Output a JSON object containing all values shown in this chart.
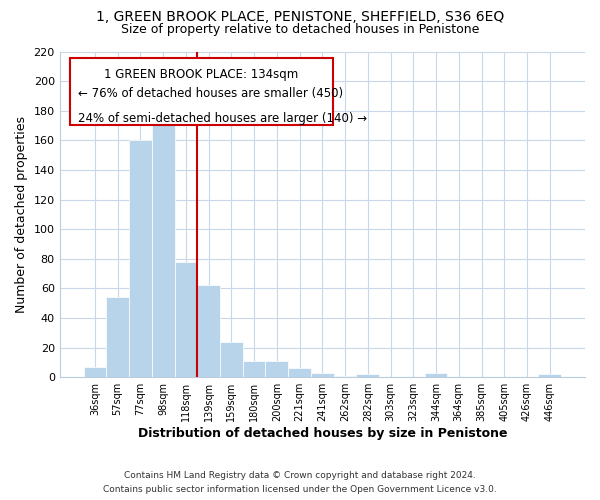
{
  "title": "1, GREEN BROOK PLACE, PENISTONE, SHEFFIELD, S36 6EQ",
  "subtitle": "Size of property relative to detached houses in Penistone",
  "bar_labels": [
    "36sqm",
    "57sqm",
    "77sqm",
    "98sqm",
    "118sqm",
    "139sqm",
    "159sqm",
    "180sqm",
    "200sqm",
    "221sqm",
    "241sqm",
    "262sqm",
    "282sqm",
    "303sqm",
    "323sqm",
    "344sqm",
    "364sqm",
    "385sqm",
    "405sqm",
    "426sqm",
    "446sqm"
  ],
  "bar_values": [
    7,
    54,
    160,
    175,
    78,
    62,
    24,
    11,
    11,
    6,
    3,
    1,
    2,
    0,
    0,
    3,
    0,
    0,
    0,
    0,
    2
  ],
  "bar_color": "#b8d4ea",
  "marker_line_color": "#cc0000",
  "xlabel": "Distribution of detached houses by size in Penistone",
  "ylabel": "Number of detached properties",
  "ylim": [
    0,
    220
  ],
  "yticks": [
    0,
    20,
    40,
    60,
    80,
    100,
    120,
    140,
    160,
    180,
    200,
    220
  ],
  "annotation_title": "1 GREEN BROOK PLACE: 134sqm",
  "annotation_line1": "← 76% of detached houses are smaller (450)",
  "annotation_line2": "24% of semi-detached houses are larger (140) →",
  "footer1": "Contains HM Land Registry data © Crown copyright and database right 2024.",
  "footer2": "Contains public sector information licensed under the Open Government Licence v3.0.",
  "background_color": "#ffffff",
  "grid_color": "#c8d8e8"
}
